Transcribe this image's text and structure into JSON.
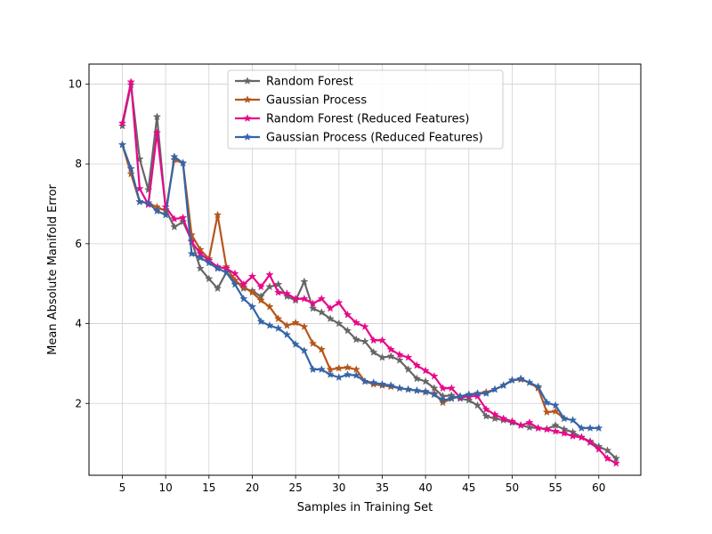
{
  "chart_data": {
    "type": "line",
    "title": "",
    "xlabel": "Samples in Training Set",
    "ylabel": "Mean Absolute Manifold Error",
    "xlim": [
      1.15,
      64.85
    ],
    "ylim": [
      0.2,
      10.5
    ],
    "xticks": [
      5,
      10,
      15,
      20,
      25,
      30,
      35,
      40,
      45,
      50,
      55,
      60
    ],
    "yticks": [
      2,
      4,
      6,
      8,
      10
    ],
    "grid": true,
    "legend_position": "top-center",
    "marker": "star",
    "series": [
      {
        "name": "Random Forest",
        "color": "#666666",
        "x": [
          5,
          6,
          7,
          8,
          9,
          10,
          11,
          12,
          13,
          14,
          15,
          16,
          17,
          18,
          19,
          20,
          21,
          22,
          23,
          24,
          25,
          26,
          27,
          28,
          29,
          30,
          31,
          32,
          33,
          34,
          35,
          36,
          37,
          38,
          39,
          40,
          41,
          42,
          43,
          44,
          45,
          46,
          47,
          48,
          49,
          50,
          51,
          52,
          53,
          54,
          55,
          56,
          57,
          58,
          59,
          60,
          61,
          62
        ],
        "values": [
          8.95,
          9.98,
          8.12,
          7.35,
          9.18,
          6.85,
          6.42,
          6.55,
          6.08,
          5.38,
          5.12,
          4.88,
          5.28,
          5.08,
          4.88,
          4.82,
          4.68,
          4.92,
          4.98,
          4.68,
          4.58,
          5.05,
          4.38,
          4.28,
          4.12,
          4.0,
          3.82,
          3.6,
          3.55,
          3.28,
          3.15,
          3.18,
          3.08,
          2.85,
          2.62,
          2.55,
          2.38,
          2.18,
          2.2,
          2.12,
          2.08,
          1.95,
          1.68,
          1.62,
          1.58,
          1.52,
          1.45,
          1.4,
          1.38,
          1.36,
          1.45,
          1.35,
          1.28,
          1.15,
          1.05,
          0.92,
          0.82,
          0.62
        ]
      },
      {
        "name": "Gaussian Process",
        "color": "#b5561c",
        "x": [
          5,
          6,
          7,
          8,
          9,
          10,
          11,
          12,
          13,
          14,
          15,
          16,
          17,
          18,
          19,
          20,
          21,
          22,
          23,
          24,
          25,
          26,
          27,
          28,
          29,
          30,
          31,
          32,
          33,
          34,
          35,
          36,
          37,
          38,
          39,
          40,
          41,
          42,
          43,
          44,
          45,
          46,
          47,
          48,
          49,
          50,
          51,
          52,
          53,
          54,
          55,
          56
        ],
        "values": [
          8.48,
          7.75,
          7.05,
          7.02,
          6.92,
          6.82,
          8.1,
          8.02,
          6.22,
          5.85,
          5.62,
          6.72,
          5.42,
          5.08,
          4.92,
          4.78,
          4.58,
          4.42,
          4.12,
          3.95,
          4.02,
          3.92,
          3.5,
          3.35,
          2.85,
          2.88,
          2.9,
          2.85,
          2.55,
          2.48,
          2.45,
          2.42,
          2.38,
          2.35,
          2.32,
          2.28,
          2.25,
          2.02,
          2.12,
          2.18,
          2.22,
          2.25,
          2.28,
          2.35,
          2.45,
          2.58,
          2.6,
          2.52,
          2.38,
          1.78,
          1.8,
          1.62
        ]
      },
      {
        "name": "Random Forest (Reduced Features)",
        "color": "#e7098b",
        "x": [
          5,
          6,
          7,
          8,
          9,
          10,
          11,
          12,
          13,
          14,
          15,
          16,
          17,
          18,
          19,
          20,
          21,
          22,
          23,
          24,
          25,
          26,
          27,
          28,
          29,
          30,
          31,
          32,
          33,
          34,
          35,
          36,
          37,
          38,
          39,
          40,
          41,
          42,
          43,
          44,
          45,
          46,
          47,
          48,
          49,
          50,
          51,
          52,
          53,
          54,
          55,
          56,
          57,
          58,
          59,
          60,
          61,
          62
        ],
        "values": [
          9.02,
          10.05,
          7.38,
          6.98,
          8.78,
          6.92,
          6.62,
          6.65,
          6.05,
          5.75,
          5.58,
          5.42,
          5.38,
          5.25,
          4.98,
          5.18,
          4.92,
          5.22,
          4.78,
          4.75,
          4.62,
          4.62,
          4.5,
          4.62,
          4.38,
          4.52,
          4.22,
          4.02,
          3.92,
          3.58,
          3.58,
          3.35,
          3.22,
          3.15,
          2.95,
          2.82,
          2.68,
          2.38,
          2.38,
          2.15,
          2.18,
          2.18,
          1.85,
          1.72,
          1.62,
          1.55,
          1.45,
          1.52,
          1.38,
          1.35,
          1.3,
          1.25,
          1.18,
          1.15,
          1.02,
          0.85,
          0.62,
          0.5
        ]
      },
      {
        "name": "Gaussian Process (Reduced Features)",
        "color": "#3565a8",
        "x": [
          5,
          6,
          7,
          8,
          9,
          10,
          11,
          12,
          13,
          14,
          15,
          16,
          17,
          18,
          19,
          20,
          21,
          22,
          23,
          24,
          25,
          26,
          27,
          28,
          29,
          30,
          31,
          32,
          33,
          34,
          35,
          36,
          37,
          38,
          39,
          40,
          41,
          42,
          43,
          44,
          45,
          46,
          47,
          48,
          49,
          50,
          51,
          52,
          53,
          54,
          55,
          56,
          57,
          58,
          59,
          60
        ],
        "values": [
          8.48,
          7.88,
          7.05,
          7.02,
          6.82,
          6.72,
          8.18,
          8.02,
          5.75,
          5.65,
          5.52,
          5.38,
          5.28,
          4.98,
          4.62,
          4.42,
          4.05,
          3.95,
          3.88,
          3.72,
          3.48,
          3.32,
          2.85,
          2.85,
          2.72,
          2.65,
          2.72,
          2.7,
          2.55,
          2.52,
          2.48,
          2.45,
          2.38,
          2.35,
          2.32,
          2.3,
          2.22,
          2.08,
          2.12,
          2.18,
          2.22,
          2.25,
          2.25,
          2.35,
          2.45,
          2.58,
          2.62,
          2.52,
          2.42,
          2.02,
          1.95,
          1.62,
          1.58,
          1.38,
          1.38,
          1.38
        ]
      }
    ]
  }
}
